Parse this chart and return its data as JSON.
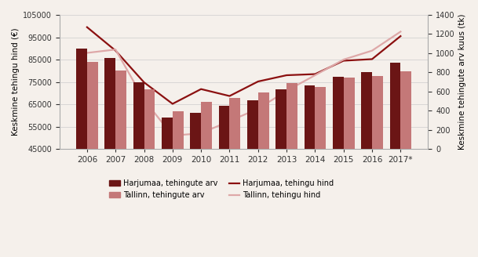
{
  "years": [
    "2006",
    "2007",
    "2008",
    "2009",
    "2010",
    "2011",
    "2012",
    "2013",
    "2014",
    "2015",
    "2016",
    "2017*"
  ],
  "harjumaa_arv": [
    1050,
    950,
    700,
    330,
    380,
    455,
    510,
    620,
    660,
    750,
    800,
    900
  ],
  "tallinn_arv": [
    910,
    820,
    625,
    395,
    495,
    530,
    590,
    685,
    645,
    745,
    765,
    810
  ],
  "harjumaa_hind": [
    99500,
    89000,
    74800,
    65200,
    71800,
    68700,
    75200,
    78000,
    78500,
    84500,
    85200,
    95500
  ],
  "tallinn_hind": [
    88000,
    89500,
    67000,
    51000,
    52000,
    57500,
    63000,
    71000,
    78000,
    85000,
    89000,
    97500
  ],
  "bar_color_harjumaa": "#6b1515",
  "bar_color_tallinn": "#c47878",
  "line_color_harjumaa": "#8b1010",
  "line_color_tallinn": "#dea8a8",
  "ylabel_left": "Keskmine tehingu hind (€)",
  "ylabel_right": "Keskmine tehingute arv kuus (tk)",
  "ylim_left": [
    45000,
    105000
  ],
  "ylim_right": [
    0,
    1400
  ],
  "yticks_left": [
    45000,
    55000,
    65000,
    75000,
    85000,
    95000,
    105000
  ],
  "yticks_right": [
    0,
    200,
    400,
    600,
    800,
    1000,
    1200,
    1400
  ],
  "legend_labels": [
    "Harjumaa, tehingute arv",
    "Tallinn, tehingute arv",
    "Harjumaa, tehingu hind",
    "Tallinn, tehingu hind"
  ],
  "background_color": "#f5f0eb",
  "grid_color": "#cccccc"
}
